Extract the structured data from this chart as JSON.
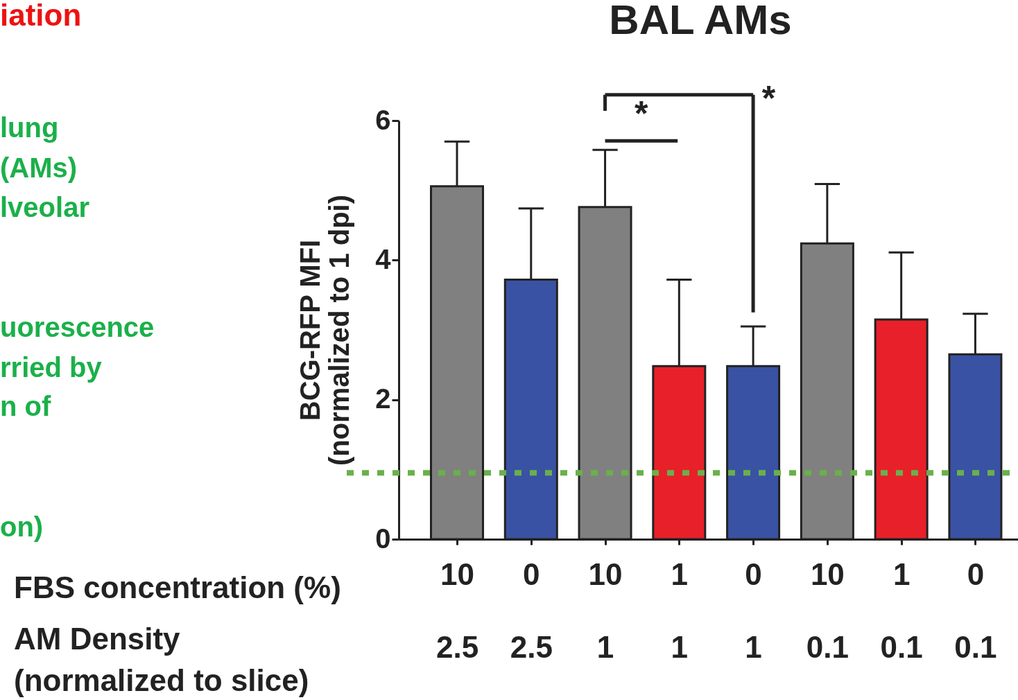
{
  "chart_data": {
    "type": "bar",
    "title": "BAL AMs",
    "ylabel": "BCG-RFP MFI\n(normalized to 1 dpi)",
    "categories": [
      "10\n2.5",
      "0\n2.5",
      "10\n1",
      "1\n1",
      "0\n1",
      "10\n0.1",
      "1\n0.1",
      "0\n0.1"
    ],
    "values": [
      5.06,
      3.72,
      4.76,
      2.48,
      2.48,
      4.24,
      3.15,
      2.65
    ],
    "colors": [
      "#808080",
      "#3a52a3",
      "#808080",
      "#e8202a",
      "#3a52a3",
      "#808080",
      "#e8202a",
      "#3a52a3"
    ],
    "errors": [
      [
        5.06,
        5.7
      ],
      [
        3.72,
        4.74
      ],
      [
        4.76,
        5.58
      ],
      [
        2.48,
        3.72
      ],
      [
        2.48,
        3.05
      ],
      [
        4.24,
        5.09
      ],
      [
        3.15,
        4.11
      ],
      [
        2.65,
        3.23
      ]
    ],
    "ylim": [
      0,
      6
    ],
    "yticks": [
      0,
      2,
      4,
      6
    ],
    "grid": false,
    "ref_lines": [
      {
        "axis": "y",
        "value": 0.95,
        "color": "#6ab04c",
        "line_style": "dotted"
      }
    ],
    "annotations": [
      "*",
      "*",
      "FBS concentration (%)",
      "AM Density\n(normalized to slice)",
      "iation",
      "lung",
      "(AMs)",
      "lveolar",
      "uorescence",
      "rried by",
      "n of",
      "on)"
    ]
  }
}
